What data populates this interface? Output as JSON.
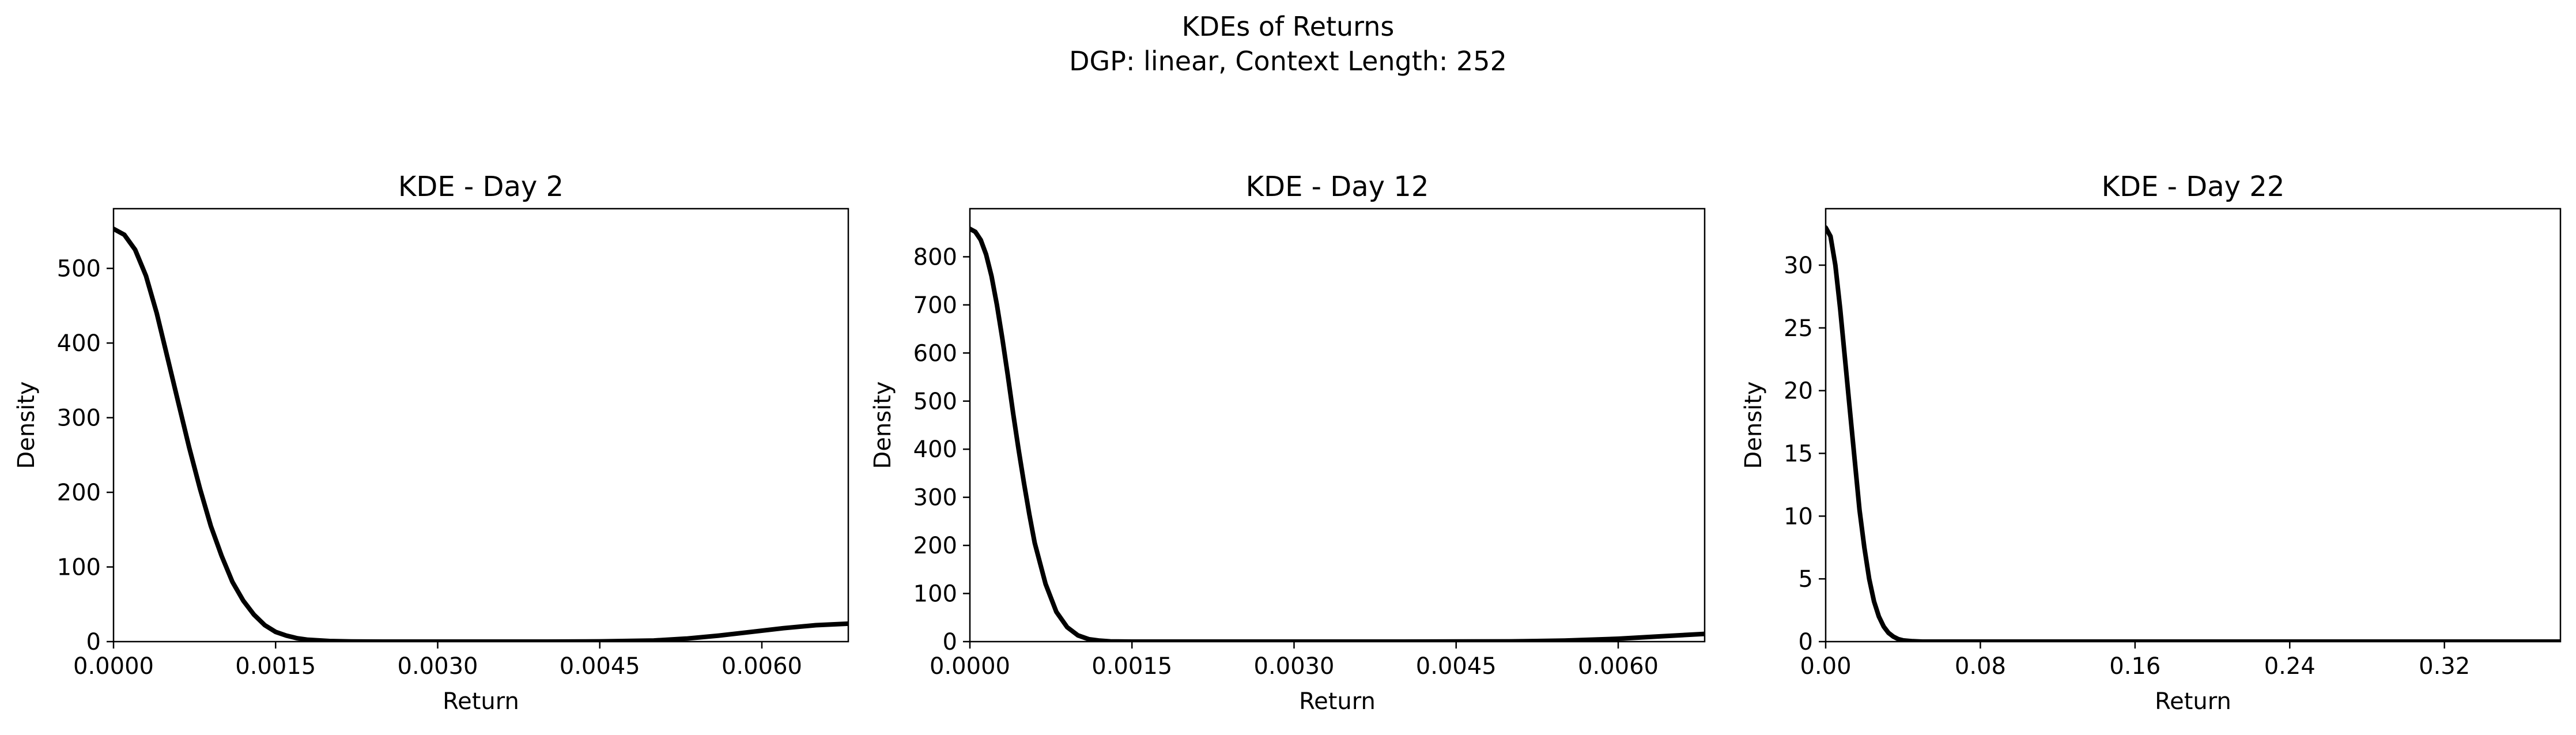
{
  "figure": {
    "title_line1": "KDEs of Returns",
    "title_line2": "DGP: linear, Context Length: 252"
  },
  "chart_data": [
    {
      "type": "line",
      "title": "KDE - Day 2",
      "xlabel": "Return",
      "ylabel": "Density",
      "xlim": [
        0,
        0.0068
      ],
      "ylim": [
        0,
        580
      ],
      "xticks": [
        0.0,
        0.0015,
        0.003,
        0.0045,
        0.006
      ],
      "xtick_labels": [
        "0.0000",
        "0.0015",
        "0.0030",
        "0.0045",
        "0.0060"
      ],
      "yticks": [
        0,
        100,
        200,
        300,
        400,
        500
      ],
      "ytick_labels": [
        "0",
        "100",
        "200",
        "300",
        "400",
        "500"
      ],
      "grid": false,
      "line_color": "#000000",
      "series": [
        {
          "x": [
            0.0,
            0.0001,
            0.0002,
            0.0003,
            0.0004,
            0.0005,
            0.0006,
            0.0007,
            0.0008,
            0.0009,
            0.001,
            0.0011,
            0.0012,
            0.0013,
            0.0014,
            0.0015,
            0.0016,
            0.0017,
            0.0018,
            0.002,
            0.0022,
            0.0025,
            0.003,
            0.0035,
            0.004,
            0.0045,
            0.005,
            0.0053,
            0.0056,
            0.0059,
            0.0062,
            0.0065,
            0.0068
          ],
          "y": [
            553,
            545,
            525,
            490,
            440,
            380,
            320,
            260,
            205,
            155,
            115,
            80,
            55,
            36,
            22,
            13,
            8,
            4.5,
            2.5,
            0.8,
            0.2,
            0,
            0,
            0,
            0,
            0.3,
            1.5,
            4,
            8,
            13,
            18,
            22,
            24
          ]
        }
      ]
    },
    {
      "type": "line",
      "title": "KDE - Day 12",
      "xlabel": "Return",
      "ylabel": "Density",
      "xlim": [
        0,
        0.0068
      ],
      "ylim": [
        0,
        900
      ],
      "xticks": [
        0.0,
        0.0015,
        0.003,
        0.0045,
        0.006
      ],
      "xtick_labels": [
        "0.0000",
        "0.0015",
        "0.0030",
        "0.0045",
        "0.0060"
      ],
      "yticks": [
        0,
        100,
        200,
        300,
        400,
        500,
        600,
        700,
        800
      ],
      "ytick_labels": [
        "0",
        "100",
        "200",
        "300",
        "400",
        "500",
        "600",
        "700",
        "800"
      ],
      "grid": false,
      "line_color": "#000000",
      "series": [
        {
          "x": [
            0.0,
            5e-05,
            0.0001,
            0.00015,
            0.0002,
            0.00025,
            0.0003,
            0.00035,
            0.0004,
            0.00045,
            0.0005,
            0.00055,
            0.0006,
            0.0007,
            0.0008,
            0.0009,
            0.001,
            0.0011,
            0.0012,
            0.0013,
            0.0015,
            0.002,
            0.003,
            0.004,
            0.005,
            0.0055,
            0.006,
            0.0064,
            0.0068
          ],
          "y": [
            858,
            852,
            835,
            805,
            760,
            700,
            630,
            555,
            475,
            400,
            330,
            265,
            205,
            120,
            62,
            30,
            13,
            5,
            2,
            0.5,
            0,
            0,
            0,
            0,
            0.5,
            2,
            6,
            11,
            16
          ]
        }
      ]
    },
    {
      "type": "line",
      "title": "KDE - Day 22",
      "xlabel": "Return",
      "ylabel": "Density",
      "xlim": [
        0,
        0.38
      ],
      "ylim": [
        0,
        34.5
      ],
      "xticks": [
        0.0,
        0.08,
        0.16,
        0.24,
        0.32
      ],
      "xtick_labels": [
        "0.00",
        "0.08",
        "0.16",
        "0.24",
        "0.32"
      ],
      "yticks": [
        0,
        5,
        10,
        15,
        20,
        25,
        30
      ],
      "ytick_labels": [
        "0",
        "5",
        "10",
        "15",
        "20",
        "25",
        "30"
      ],
      "grid": false,
      "line_color": "#000000",
      "series": [
        {
          "x": [
            0.0,
            0.0025,
            0.005,
            0.0075,
            0.01,
            0.0125,
            0.015,
            0.0175,
            0.02,
            0.0225,
            0.025,
            0.0275,
            0.03,
            0.0325,
            0.035,
            0.0375,
            0.04,
            0.045,
            0.05,
            0.06,
            0.08,
            0.12,
            0.2,
            0.3,
            0.38
          ],
          "y": [
            33,
            32.3,
            30,
            26.5,
            22.5,
            18.5,
            14.5,
            10.5,
            7.5,
            5,
            3.2,
            2,
            1.2,
            0.7,
            0.4,
            0.2,
            0.1,
            0.03,
            0,
            0,
            0,
            0,
            0,
            0,
            0
          ]
        }
      ]
    }
  ]
}
